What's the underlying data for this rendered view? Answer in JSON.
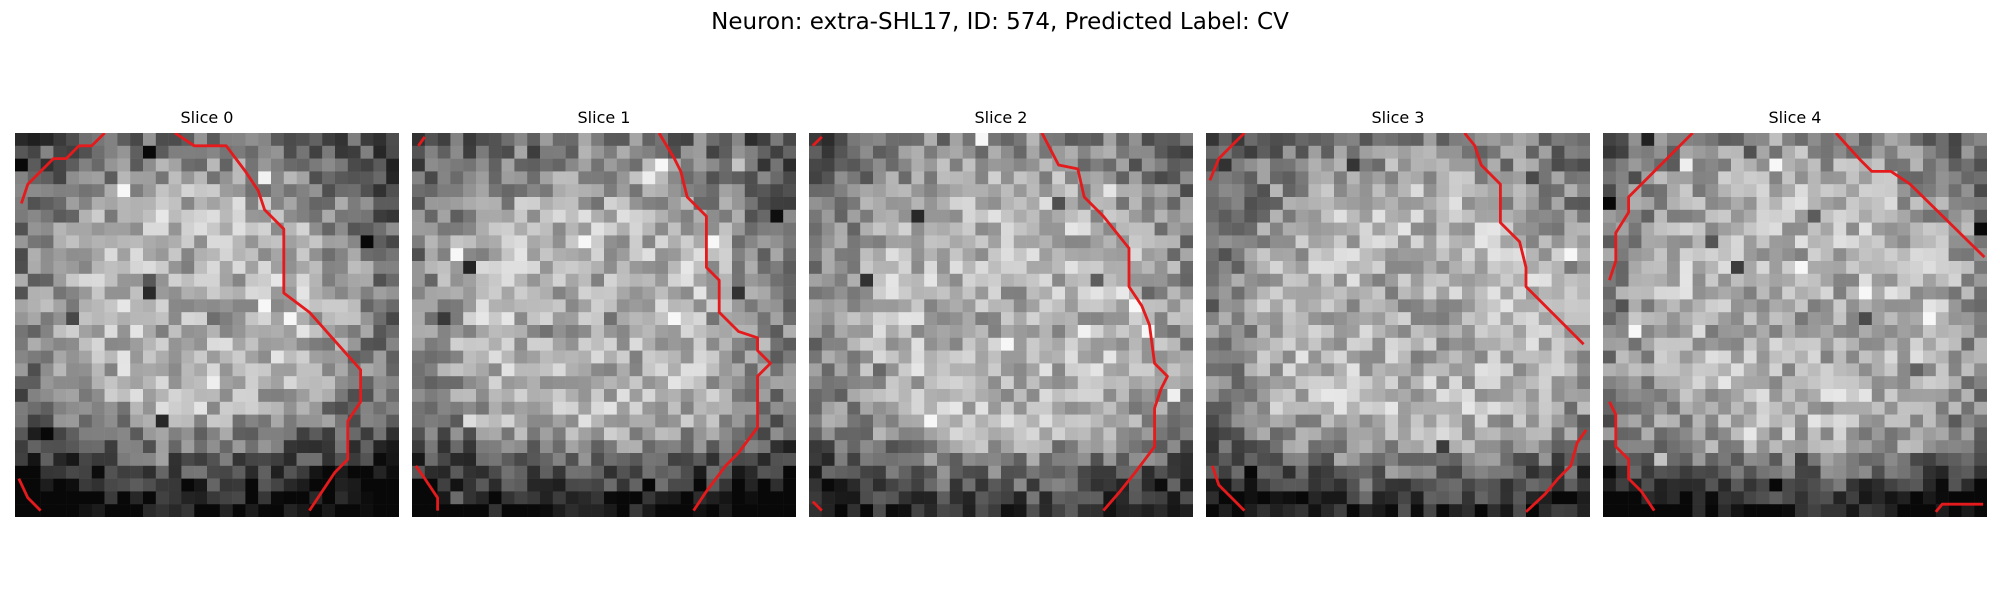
{
  "figure": {
    "title": "Neuron: extra-SHL17, ID: 574, Predicted Label: CV",
    "colors": {
      "contour": "#e41a1c",
      "background": "#ffffff"
    },
    "panels": [
      {
        "title": "Slice 0"
      },
      {
        "title": "Slice 1"
      },
      {
        "title": "Slice 2"
      },
      {
        "title": "Slice 3"
      },
      {
        "title": "Slice 4"
      }
    ]
  }
}
